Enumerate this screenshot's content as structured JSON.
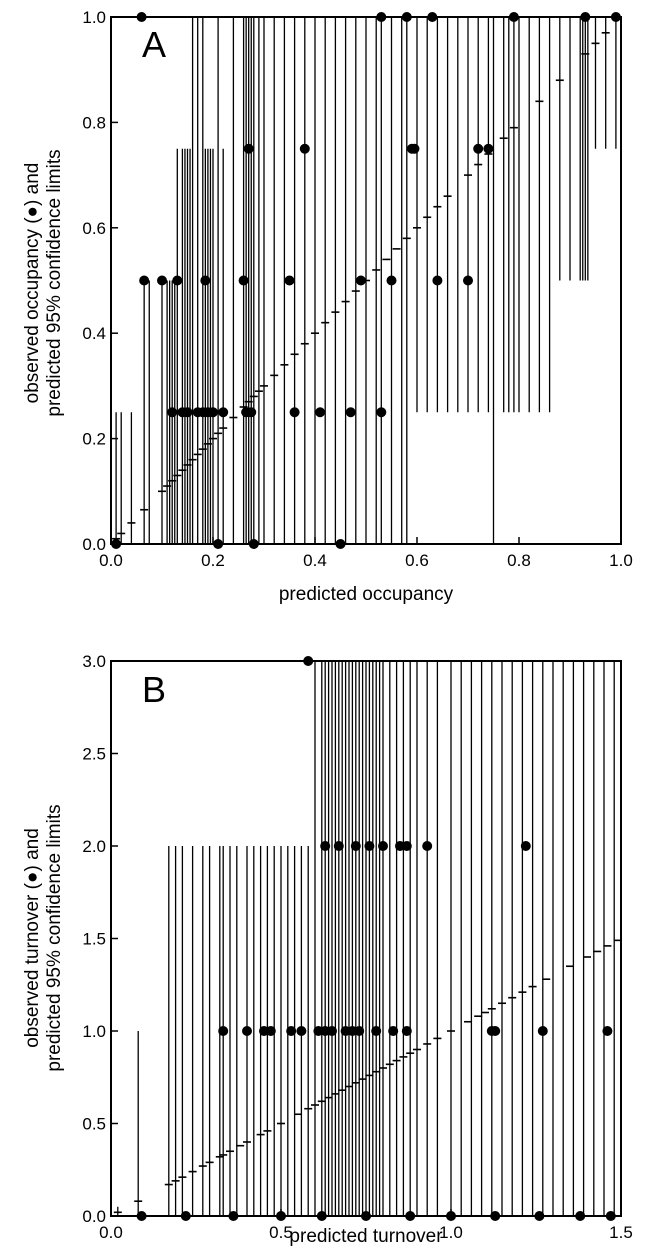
{
  "chart_data": [
    {
      "type": "scatter",
      "panel_label": "A",
      "xlabel": "predicted occupancy",
      "ylabel_lines": [
        "observed occupancy (●) and",
        "predicted 95% confidence limits"
      ],
      "xlim": [
        0,
        1
      ],
      "ylim": [
        0,
        1
      ],
      "x_ticks": [
        0,
        0.2,
        0.4,
        0.6,
        0.8,
        1.0
      ],
      "x_tick_labels": [
        "0.0",
        "0.2",
        "0.4",
        "0.6",
        "0.8",
        "1.0"
      ],
      "y_ticks": [
        0,
        0.2,
        0.4,
        0.6,
        0.8,
        1.0
      ],
      "y_tick_labels": [
        "0.0",
        "0.2",
        "0.4",
        "0.6",
        "0.8",
        "1.0"
      ],
      "grid": false,
      "confidence_intervals": [
        [
          0.01,
          0,
          0.25
        ],
        [
          0.02,
          0,
          0.25
        ],
        [
          0.04,
          0,
          0.25
        ],
        [
          0.065,
          0,
          0.5
        ],
        [
          0.075,
          0,
          0.5
        ],
        [
          0.1,
          0,
          0.5
        ],
        [
          0.11,
          0,
          0.5
        ],
        [
          0.115,
          0,
          0.5
        ],
        [
          0.12,
          0,
          0.5
        ],
        [
          0.125,
          0,
          0.5
        ],
        [
          0.13,
          0,
          0.75
        ],
        [
          0.14,
          0,
          0.75
        ],
        [
          0.145,
          0,
          0.75
        ],
        [
          0.15,
          0,
          0.75
        ],
        [
          0.155,
          0,
          0.75
        ],
        [
          0.16,
          0,
          1
        ],
        [
          0.17,
          0,
          1
        ],
        [
          0.18,
          0,
          1
        ],
        [
          0.185,
          0,
          0.75
        ],
        [
          0.19,
          0,
          0.75
        ],
        [
          0.195,
          0,
          0.75
        ],
        [
          0.2,
          0,
          0.75
        ],
        [
          0.21,
          0,
          1
        ],
        [
          0.22,
          0,
          0.75
        ],
        [
          0.24,
          0,
          1
        ],
        [
          0.26,
          0,
          1
        ],
        [
          0.265,
          0,
          1
        ],
        [
          0.27,
          0,
          1
        ],
        [
          0.275,
          0,
          1
        ],
        [
          0.28,
          0,
          1
        ],
        [
          0.29,
          0,
          1
        ],
        [
          0.3,
          0,
          1
        ],
        [
          0.32,
          0,
          1
        ],
        [
          0.34,
          0,
          1
        ],
        [
          0.36,
          0,
          1
        ],
        [
          0.38,
          0,
          1
        ],
        [
          0.4,
          0,
          1
        ],
        [
          0.42,
          0,
          1
        ],
        [
          0.44,
          0,
          1
        ],
        [
          0.46,
          0,
          1
        ],
        [
          0.48,
          0,
          1
        ],
        [
          0.5,
          0,
          1
        ],
        [
          0.52,
          0,
          1
        ],
        [
          0.53,
          0,
          1
        ],
        [
          0.55,
          0,
          1
        ],
        [
          0.57,
          0,
          1
        ],
        [
          0.58,
          0,
          1
        ],
        [
          0.6,
          0.25,
          1
        ],
        [
          0.62,
          0.25,
          1
        ],
        [
          0.64,
          0.25,
          1
        ],
        [
          0.66,
          0.25,
          1
        ],
        [
          0.68,
          0.25,
          1
        ],
        [
          0.7,
          0.25,
          1
        ],
        [
          0.72,
          0.25,
          1
        ],
        [
          0.74,
          0.25,
          1
        ],
        [
          0.75,
          0,
          1
        ],
        [
          0.77,
          0.25,
          1
        ],
        [
          0.78,
          0.25,
          1
        ],
        [
          0.79,
          0.25,
          1
        ],
        [
          0.8,
          0.25,
          1
        ],
        [
          0.82,
          0.25,
          1
        ],
        [
          0.84,
          0.25,
          1
        ],
        [
          0.86,
          0.25,
          1
        ],
        [
          0.88,
          0.5,
          1
        ],
        [
          0.9,
          0.5,
          1
        ],
        [
          0.92,
          0.5,
          1
        ],
        [
          0.925,
          0.5,
          1
        ],
        [
          0.93,
          0.5,
          1
        ],
        [
          0.935,
          0.5,
          1
        ],
        [
          0.95,
          0.75,
          1
        ],
        [
          0.97,
          0.75,
          1
        ],
        [
          0.99,
          0.75,
          1
        ]
      ],
      "predicted_means": [
        [
          0.01,
          0.01
        ],
        [
          0.02,
          0.02
        ],
        [
          0.04,
          0.04
        ],
        [
          0.065,
          0.065
        ],
        [
          0.1,
          0.1
        ],
        [
          0.11,
          0.11
        ],
        [
          0.12,
          0.12
        ],
        [
          0.13,
          0.13
        ],
        [
          0.14,
          0.14
        ],
        [
          0.15,
          0.15
        ],
        [
          0.16,
          0.16
        ],
        [
          0.17,
          0.17
        ],
        [
          0.18,
          0.18
        ],
        [
          0.19,
          0.19
        ],
        [
          0.2,
          0.2
        ],
        [
          0.21,
          0.21
        ],
        [
          0.22,
          0.22
        ],
        [
          0.24,
          0.24
        ],
        [
          0.26,
          0.26
        ],
        [
          0.27,
          0.27
        ],
        [
          0.28,
          0.28
        ],
        [
          0.29,
          0.29
        ],
        [
          0.3,
          0.3
        ],
        [
          0.32,
          0.32
        ],
        [
          0.34,
          0.34
        ],
        [
          0.36,
          0.36
        ],
        [
          0.38,
          0.38
        ],
        [
          0.4,
          0.4
        ],
        [
          0.42,
          0.42
        ],
        [
          0.44,
          0.44
        ],
        [
          0.46,
          0.46
        ],
        [
          0.48,
          0.48
        ],
        [
          0.5,
          0.5
        ],
        [
          0.52,
          0.52
        ],
        [
          0.54,
          0.54
        ],
        [
          0.56,
          0.56
        ],
        [
          0.58,
          0.58
        ],
        [
          0.6,
          0.6
        ],
        [
          0.62,
          0.62
        ],
        [
          0.64,
          0.64
        ],
        [
          0.66,
          0.66
        ],
        [
          0.7,
          0.7
        ],
        [
          0.72,
          0.72
        ],
        [
          0.74,
          0.74
        ],
        [
          0.77,
          0.77
        ],
        [
          0.79,
          0.79
        ],
        [
          0.84,
          0.84
        ],
        [
          0.88,
          0.88
        ],
        [
          0.93,
          0.93
        ],
        [
          0.95,
          0.95
        ],
        [
          0.97,
          0.97
        ]
      ],
      "observed": [
        [
          0.01,
          0
        ],
        [
          0.065,
          0.5
        ],
        [
          0.1,
          0.5
        ],
        [
          0.12,
          0.25
        ],
        [
          0.13,
          0.5
        ],
        [
          0.14,
          0.25
        ],
        [
          0.15,
          0.25
        ],
        [
          0.17,
          0.25
        ],
        [
          0.18,
          0.25
        ],
        [
          0.185,
          0.5
        ],
        [
          0.19,
          0.25
        ],
        [
          0.2,
          0.25
        ],
        [
          0.21,
          0
        ],
        [
          0.22,
          0.25
        ],
        [
          0.26,
          0.5
        ],
        [
          0.265,
          0.25
        ],
        [
          0.27,
          0.75
        ],
        [
          0.275,
          0.25
        ],
        [
          0.28,
          0
        ],
        [
          0.35,
          0.5
        ],
        [
          0.36,
          0.25
        ],
        [
          0.38,
          0.75
        ],
        [
          0.41,
          0.25
        ],
        [
          0.45,
          0
        ],
        [
          0.47,
          0.25
        ],
        [
          0.49,
          0.5
        ],
        [
          0.53,
          0.25
        ],
        [
          0.55,
          0.5
        ],
        [
          0.59,
          0.75
        ],
        [
          0.595,
          0.75
        ],
        [
          0.64,
          0.5
        ],
        [
          0.7,
          0.5
        ],
        [
          0.72,
          0.75
        ],
        [
          0.74,
          0.75
        ],
        [
          0.79,
          1
        ],
        [
          0.93,
          1
        ],
        [
          0.99,
          1
        ],
        [
          0.06,
          1
        ],
        [
          0.53,
          1
        ],
        [
          0.58,
          1
        ],
        [
          0.63,
          1
        ]
      ]
    },
    {
      "type": "scatter",
      "panel_label": "B",
      "xlabel": "predicted turnover",
      "ylabel_lines": [
        "observed turnover (●) and",
        "predicted 95% confidence limits"
      ],
      "xlim": [
        0,
        1.5
      ],
      "ylim": [
        0,
        3
      ],
      "x_ticks": [
        0,
        0.5,
        1.0,
        1.5
      ],
      "x_tick_labels": [
        "0.0",
        "0.5",
        "1.0",
        "1.5"
      ],
      "y_ticks": [
        0,
        0.5,
        1.0,
        1.5,
        2.0,
        2.5,
        3.0
      ],
      "y_tick_labels": [
        "0.0",
        "0.5",
        "1.0",
        "1.5",
        "2.0",
        "2.5",
        "3.0"
      ],
      "grid": false,
      "confidence_intervals": [
        [
          0.02,
          0,
          0.05
        ],
        [
          0.08,
          0,
          1
        ],
        [
          0.17,
          0,
          2
        ],
        [
          0.19,
          0,
          2
        ],
        [
          0.21,
          0,
          2
        ],
        [
          0.24,
          0,
          2
        ],
        [
          0.27,
          0,
          2
        ],
        [
          0.29,
          0,
          2
        ],
        [
          0.32,
          0,
          2
        ],
        [
          0.33,
          0,
          2
        ],
        [
          0.35,
          0,
          2
        ],
        [
          0.37,
          0,
          2
        ],
        [
          0.4,
          0,
          2
        ],
        [
          0.42,
          0,
          2
        ],
        [
          0.44,
          0,
          2
        ],
        [
          0.46,
          0,
          2
        ],
        [
          0.48,
          0,
          2
        ],
        [
          0.5,
          0,
          2
        ],
        [
          0.52,
          0,
          2
        ],
        [
          0.54,
          0,
          2
        ],
        [
          0.56,
          0,
          2
        ],
        [
          0.58,
          0,
          2
        ],
        [
          0.6,
          0,
          3
        ],
        [
          0.62,
          0,
          3
        ],
        [
          0.63,
          0,
          3
        ],
        [
          0.64,
          0,
          3
        ],
        [
          0.65,
          0,
          3
        ],
        [
          0.66,
          0,
          3
        ],
        [
          0.67,
          0,
          3
        ],
        [
          0.68,
          0,
          3
        ],
        [
          0.69,
          0,
          3
        ],
        [
          0.7,
          0,
          3
        ],
        [
          0.71,
          0,
          3
        ],
        [
          0.72,
          0,
          3
        ],
        [
          0.73,
          0,
          3
        ],
        [
          0.74,
          0,
          3
        ],
        [
          0.75,
          0,
          3
        ],
        [
          0.76,
          0,
          3
        ],
        [
          0.77,
          0,
          3
        ],
        [
          0.78,
          0,
          3
        ],
        [
          0.79,
          0,
          3
        ],
        [
          0.8,
          0,
          3
        ],
        [
          0.82,
          0,
          3
        ],
        [
          0.84,
          0,
          3
        ],
        [
          0.86,
          0,
          3
        ],
        [
          0.88,
          0,
          3
        ],
        [
          0.9,
          0,
          3
        ],
        [
          0.93,
          0,
          3
        ],
        [
          0.96,
          0,
          3
        ],
        [
          1.0,
          0,
          3
        ],
        [
          1.03,
          0,
          3
        ],
        [
          1.06,
          0,
          3
        ],
        [
          1.09,
          0,
          3
        ],
        [
          1.12,
          0,
          3
        ],
        [
          1.15,
          0,
          3
        ],
        [
          1.18,
          0,
          3
        ],
        [
          1.21,
          0,
          3
        ],
        [
          1.24,
          0,
          3
        ],
        [
          1.27,
          0,
          3
        ],
        [
          1.3,
          0,
          3
        ],
        [
          1.33,
          0,
          3
        ],
        [
          1.36,
          0,
          3
        ],
        [
          1.39,
          0,
          3
        ],
        [
          1.42,
          0,
          3
        ],
        [
          1.45,
          0,
          3
        ],
        [
          1.48,
          0,
          3
        ]
      ],
      "predicted_means": [
        [
          0.02,
          0.02
        ],
        [
          0.08,
          0.08
        ],
        [
          0.17,
          0.17
        ],
        [
          0.19,
          0.19
        ],
        [
          0.21,
          0.21
        ],
        [
          0.24,
          0.24
        ],
        [
          0.27,
          0.27
        ],
        [
          0.29,
          0.29
        ],
        [
          0.32,
          0.32
        ],
        [
          0.33,
          0.33
        ],
        [
          0.35,
          0.35
        ],
        [
          0.38,
          0.38
        ],
        [
          0.4,
          0.4
        ],
        [
          0.44,
          0.44
        ],
        [
          0.46,
          0.46
        ],
        [
          0.5,
          0.5
        ],
        [
          0.55,
          0.55
        ],
        [
          0.58,
          0.58
        ],
        [
          0.6,
          0.6
        ],
        [
          0.62,
          0.62
        ],
        [
          0.64,
          0.64
        ],
        [
          0.66,
          0.66
        ],
        [
          0.68,
          0.68
        ],
        [
          0.7,
          0.7
        ],
        [
          0.72,
          0.72
        ],
        [
          0.74,
          0.74
        ],
        [
          0.76,
          0.76
        ],
        [
          0.78,
          0.78
        ],
        [
          0.8,
          0.8
        ],
        [
          0.82,
          0.82
        ],
        [
          0.84,
          0.84
        ],
        [
          0.86,
          0.86
        ],
        [
          0.88,
          0.88
        ],
        [
          0.9,
          0.9
        ],
        [
          0.93,
          0.93
        ],
        [
          0.96,
          0.96
        ],
        [
          1.0,
          1.0
        ],
        [
          1.05,
          1.05
        ],
        [
          1.08,
          1.08
        ],
        [
          1.1,
          1.1
        ],
        [
          1.12,
          1.12
        ],
        [
          1.15,
          1.15
        ],
        [
          1.18,
          1.18
        ],
        [
          1.21,
          1.21
        ],
        [
          1.24,
          1.24
        ],
        [
          1.28,
          1.28
        ],
        [
          1.35,
          1.35
        ],
        [
          1.4,
          1.4
        ],
        [
          1.43,
          1.43
        ],
        [
          1.46,
          1.46
        ],
        [
          1.49,
          1.49
        ]
      ],
      "observed": [
        [
          0.33,
          1
        ],
        [
          0.4,
          1
        ],
        [
          0.45,
          1
        ],
        [
          0.47,
          1
        ],
        [
          0.53,
          1
        ],
        [
          0.56,
          1
        ],
        [
          0.61,
          1
        ],
        [
          0.63,
          1
        ],
        [
          0.65,
          1
        ],
        [
          0.69,
          1
        ],
        [
          0.71,
          1
        ],
        [
          0.73,
          1
        ],
        [
          0.78,
          1
        ],
        [
          0.83,
          1
        ],
        [
          0.87,
          1
        ],
        [
          0.63,
          2
        ],
        [
          0.67,
          2
        ],
        [
          0.72,
          2
        ],
        [
          0.76,
          2
        ],
        [
          0.8,
          2
        ],
        [
          0.85,
          2
        ],
        [
          0.87,
          2
        ],
        [
          0.93,
          2
        ],
        [
          1.22,
          2
        ],
        [
          1.12,
          1
        ],
        [
          1.13,
          1
        ],
        [
          1.27,
          1
        ],
        [
          1.46,
          1
        ],
        [
          0.58,
          3
        ],
        [
          0.09,
          0
        ],
        [
          0.22,
          0
        ],
        [
          0.36,
          0
        ],
        [
          0.5,
          0
        ],
        [
          0.62,
          0
        ],
        [
          0.75,
          0
        ],
        [
          0.88,
          0
        ],
        [
          1.0,
          0
        ],
        [
          1.13,
          0
        ],
        [
          1.26,
          0
        ],
        [
          1.38,
          0
        ],
        [
          1.47,
          0
        ]
      ]
    }
  ]
}
